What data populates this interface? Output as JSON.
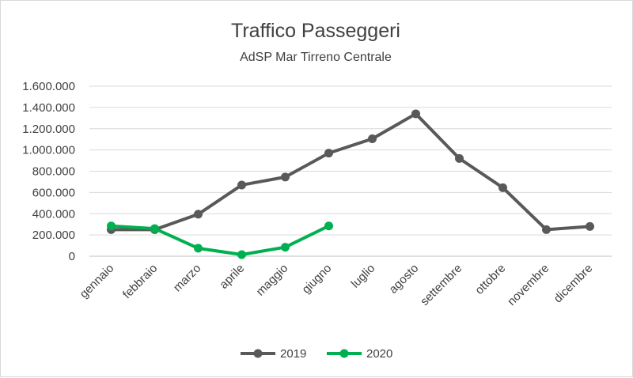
{
  "chart_data": {
    "type": "line",
    "title": "Traffico Passeggeri",
    "subtitle": "AdSP Mar Tirreno Centrale",
    "xlabel": "",
    "ylabel": "",
    "categories": [
      "gennaio",
      "febbraio",
      "marzo",
      "aprile",
      "maggio",
      "giugno",
      "luglio",
      "agosto",
      "settembre",
      "ottobre",
      "novembre",
      "dicembre"
    ],
    "ylim": [
      0,
      1600000
    ],
    "yticks": [
      0,
      200000,
      400000,
      600000,
      800000,
      1000000,
      1200000,
      1400000,
      1600000
    ],
    "ytick_labels": [
      "0",
      "200.000",
      "400.000",
      "600.000",
      "800.000",
      "1.000.000",
      "1.200.000",
      "1.400.000",
      "1.600.000"
    ],
    "grid": true,
    "legend_position": "bottom",
    "series": [
      {
        "name": "2019",
        "color": "#595959",
        "values": [
          250000,
          250000,
          395000,
          670000,
          745000,
          970000,
          1105000,
          1340000,
          920000,
          645000,
          250000,
          280000
        ]
      },
      {
        "name": "2020",
        "color": "#00b050",
        "values": [
          285000,
          260000,
          75000,
          15000,
          85000,
          285000,
          null,
          null,
          null,
          null,
          null,
          null
        ]
      }
    ]
  }
}
